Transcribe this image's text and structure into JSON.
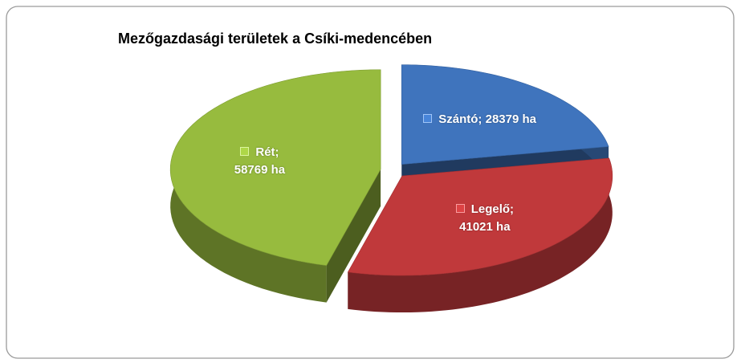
{
  "chart_data": {
    "type": "pie",
    "title": "Mezőgazdasági területek a Csíki-medencében",
    "categories": [
      "Szántó",
      "Legelő",
      "Rét"
    ],
    "values": [
      28379,
      41021,
      58769
    ],
    "value_labels": [
      "Szántó; 28379 ha",
      "Legelő; 41021 ha",
      "Rét; 58769 ha"
    ],
    "colors": [
      "#3f74bd",
      "#c0393b",
      "#97bb3e"
    ]
  }
}
